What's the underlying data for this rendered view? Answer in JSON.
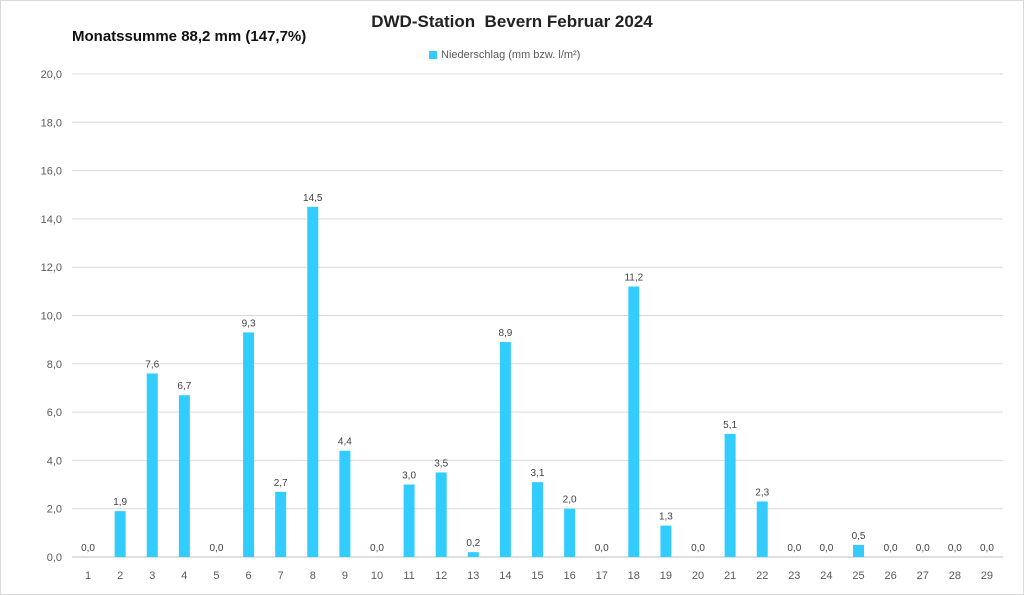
{
  "chart_data": {
    "type": "bar",
    "title": "DWD-Station  Bevern Februar 2024",
    "subtitle": "Monatssumme 88,2 mm (147,7%)",
    "legend": {
      "label": "Niederschlag (mm bzw. l/m²)",
      "placement": "top-center"
    },
    "series_color": "#33ccff",
    "xlabel": "",
    "ylabel": "",
    "ylim": [
      0,
      20
    ],
    "ytick_step": 2,
    "yticks": [
      "0,0",
      "2,0",
      "4,0",
      "6,0",
      "8,0",
      "10,0",
      "12,0",
      "14,0",
      "16,0",
      "18,0",
      "20,0"
    ],
    "grid": true,
    "categories": [
      "1",
      "2",
      "3",
      "4",
      "5",
      "6",
      "7",
      "8",
      "9",
      "10",
      "11",
      "12",
      "13",
      "14",
      "15",
      "16",
      "17",
      "18",
      "19",
      "20",
      "21",
      "22",
      "23",
      "24",
      "25",
      "26",
      "27",
      "28",
      "29"
    ],
    "values": [
      0.0,
      1.9,
      7.6,
      6.7,
      0.0,
      9.3,
      2.7,
      14.5,
      4.4,
      0.0,
      3.0,
      3.5,
      0.2,
      8.9,
      3.1,
      2.0,
      0.0,
      11.2,
      1.3,
      0.0,
      5.1,
      2.3,
      0.0,
      0.0,
      0.5,
      0.0,
      0.0,
      0.0,
      0.0
    ],
    "data_labels": [
      "0,0",
      "1,9",
      "7,6",
      "6,7",
      "0,0",
      "9,3",
      "2,7",
      "14,5",
      "4,4",
      "0,0",
      "3,0",
      "3,5",
      "0,2",
      "8,9",
      "3,1",
      "2,0",
      "0,0",
      "11,2",
      "1,3",
      "0,0",
      "5,1",
      "2,3",
      "0,0",
      "0,0",
      "0,5",
      "0,0",
      "0,0",
      "0,0",
      "0,0"
    ]
  }
}
